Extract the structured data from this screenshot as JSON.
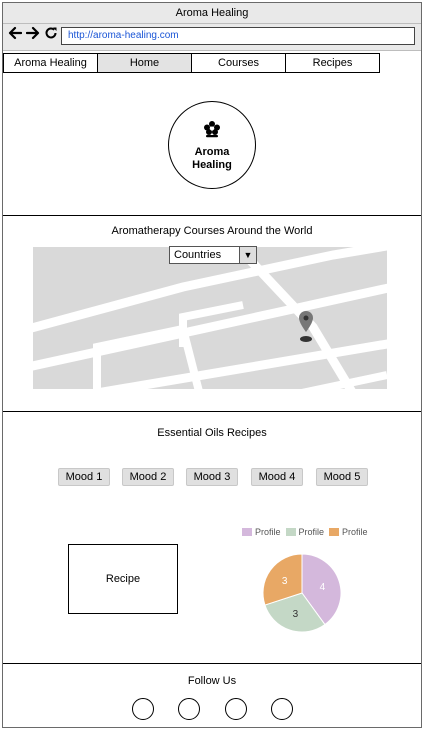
{
  "window": {
    "title": "Aroma Healing"
  },
  "browser": {
    "url": "http://aroma-healing.com",
    "back_icon": "arrow-left-icon",
    "forward_icon": "arrow-right-icon",
    "reload_icon": "reload-icon"
  },
  "nav": {
    "items": [
      "Aroma Healing",
      "Home",
      "Courses",
      "Recipes"
    ],
    "active": "Home"
  },
  "logo": {
    "line1": "Aroma",
    "line2": "Healing",
    "icon": "flower-icon"
  },
  "courses": {
    "title": "Aromatherapy Courses Around the World",
    "select_value": "Countries",
    "pin_icon": "map-pin-icon"
  },
  "recipes": {
    "title": "Essential Oils Recipes",
    "moods": [
      "Mood 1",
      "Mood 2",
      "Mood 3",
      "Mood 4",
      "Mood 5"
    ],
    "recipe_label": "Recipe"
  },
  "chart_data": {
    "type": "pie",
    "series": [
      {
        "name": "Profile",
        "value": 4,
        "color": "#d4b8dc"
      },
      {
        "name": "Profile",
        "value": 3,
        "color": "#c4d8c6"
      },
      {
        "name": "Profile",
        "value": 3,
        "color": "#e8a865"
      }
    ]
  },
  "footer": {
    "title": "Follow Us",
    "social_count": 4
  }
}
